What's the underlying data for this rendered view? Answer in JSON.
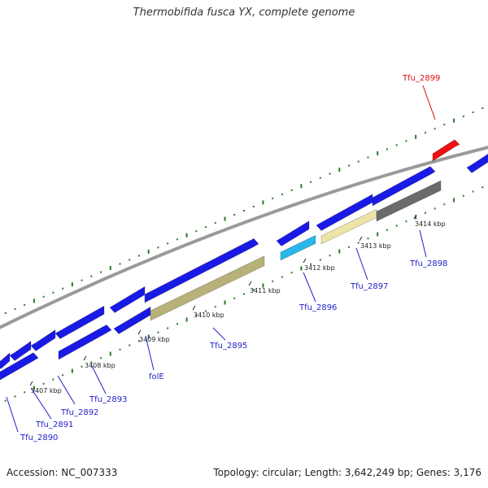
{
  "title": "Thermobifida fusca YX, complete genome",
  "footer": {
    "accession": "Accession: NC_007333",
    "summary": "Topology: circular; Length: 3,642,249 bp; Genes: 3,176"
  },
  "colors": {
    "gene_blue": "#1a1ae6",
    "gene_red": "#ee1111",
    "feature_olive": "#b7b27a",
    "feature_cream": "#ece5a8",
    "feature_cyan": "#2ab6ea",
    "feature_gray": "#6b6b6b",
    "backbone": "#9a9a9a",
    "tick_green": "#2a7a2a",
    "label_blue": "#1f1fc8",
    "label_red": "#dd1111"
  },
  "scale_ticks": [
    "3407 kbp",
    "3408 kbp",
    "3409 kbp",
    "3410 kbp",
    "3411 kbp",
    "3412 kbp",
    "3413 kbp",
    "3414 kbp"
  ],
  "gene_labels": [
    {
      "name": "Tfu_2890",
      "color": "blue"
    },
    {
      "name": "Tfu_2891",
      "color": "blue"
    },
    {
      "name": "Tfu_2892",
      "color": "blue"
    },
    {
      "name": "Tfu_2893",
      "color": "blue"
    },
    {
      "name": "folE",
      "color": "blue"
    },
    {
      "name": "Tfu_2895",
      "color": "blue"
    },
    {
      "name": "Tfu_2896",
      "color": "blue"
    },
    {
      "name": "Tfu_2897",
      "color": "blue"
    },
    {
      "name": "Tfu_2898",
      "color": "blue"
    },
    {
      "name": "Tfu_2899",
      "color": "red"
    }
  ]
}
